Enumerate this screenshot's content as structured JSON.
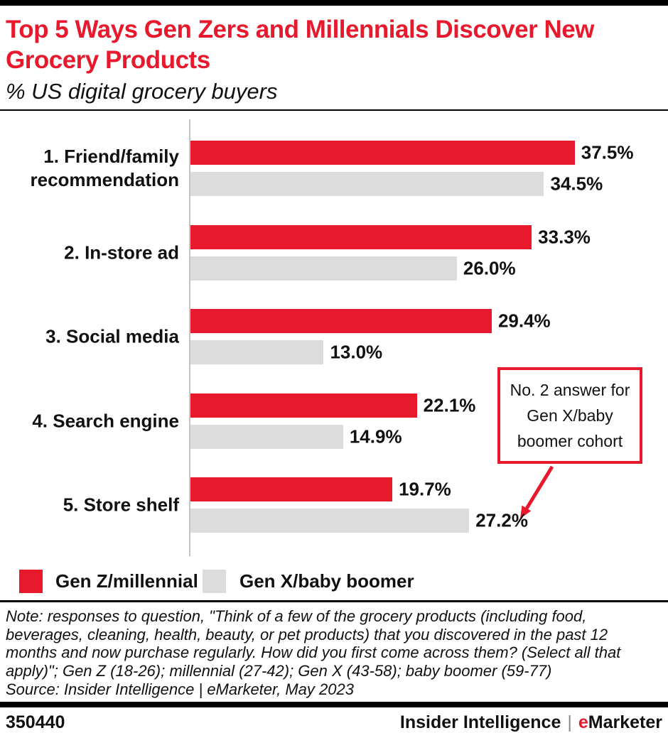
{
  "header": {
    "title": "Top 5 Ways Gen Zers and Millennials Discover New Grocery Products",
    "subtitle": "% US digital grocery buyers"
  },
  "chart_data": {
    "type": "bar",
    "orientation": "horizontal",
    "unit": "%",
    "title": "Top 5 Ways Gen Zers and Millennials Discover New Grocery Products",
    "xlabel": "",
    "ylabel": "",
    "xlim": [
      0,
      45
    ],
    "grid": false,
    "legend_position": "bottom",
    "categories": [
      "1. Friend/family recommendation",
      "2. In-store ad",
      "3. Social media",
      "4. Search engine",
      "5. Store shelf"
    ],
    "series": [
      {
        "name": "Gen Z/millennial",
        "color": "#e8192c",
        "values": [
          37.5,
          33.3,
          29.4,
          22.1,
          19.7
        ]
      },
      {
        "name": "Gen X/baby boomer",
        "color": "#dcdcdc",
        "values": [
          34.5,
          26.0,
          13.0,
          14.9,
          27.2
        ]
      }
    ],
    "annotation": {
      "text": "No. 2 answer for Gen X/baby boomer cohort",
      "points_to": "5. Store shelf — Gen X/baby boomer 27.2%"
    }
  },
  "callout": {
    "text": "No. 2 answer for Gen X/baby boomer cohort"
  },
  "note": {
    "note_text": "Note: responses to question, \"Think of a few of the grocery products (including food, beverages, cleaning, health, beauty, or pet products) that you discovered in the past 12 months and now purchase regularly. How did you first come across them? (Select all that apply)\"; Gen Z (18-26); millennial (27-42); Gen X (43-58); baby boomer (59-77)",
    "source_text": "Source: Insider Intelligence | eMarketer, May 2023"
  },
  "footer": {
    "chart_id": "350440",
    "brand_left": "Insider Intelligence",
    "separator": "|",
    "brand_e": "e",
    "brand_rest": "Marketer"
  },
  "colors": {
    "accent": "#e8192c",
    "bar_gray": "#dcdcdc",
    "axis": "#c4c4c4",
    "rule": "#000000"
  }
}
